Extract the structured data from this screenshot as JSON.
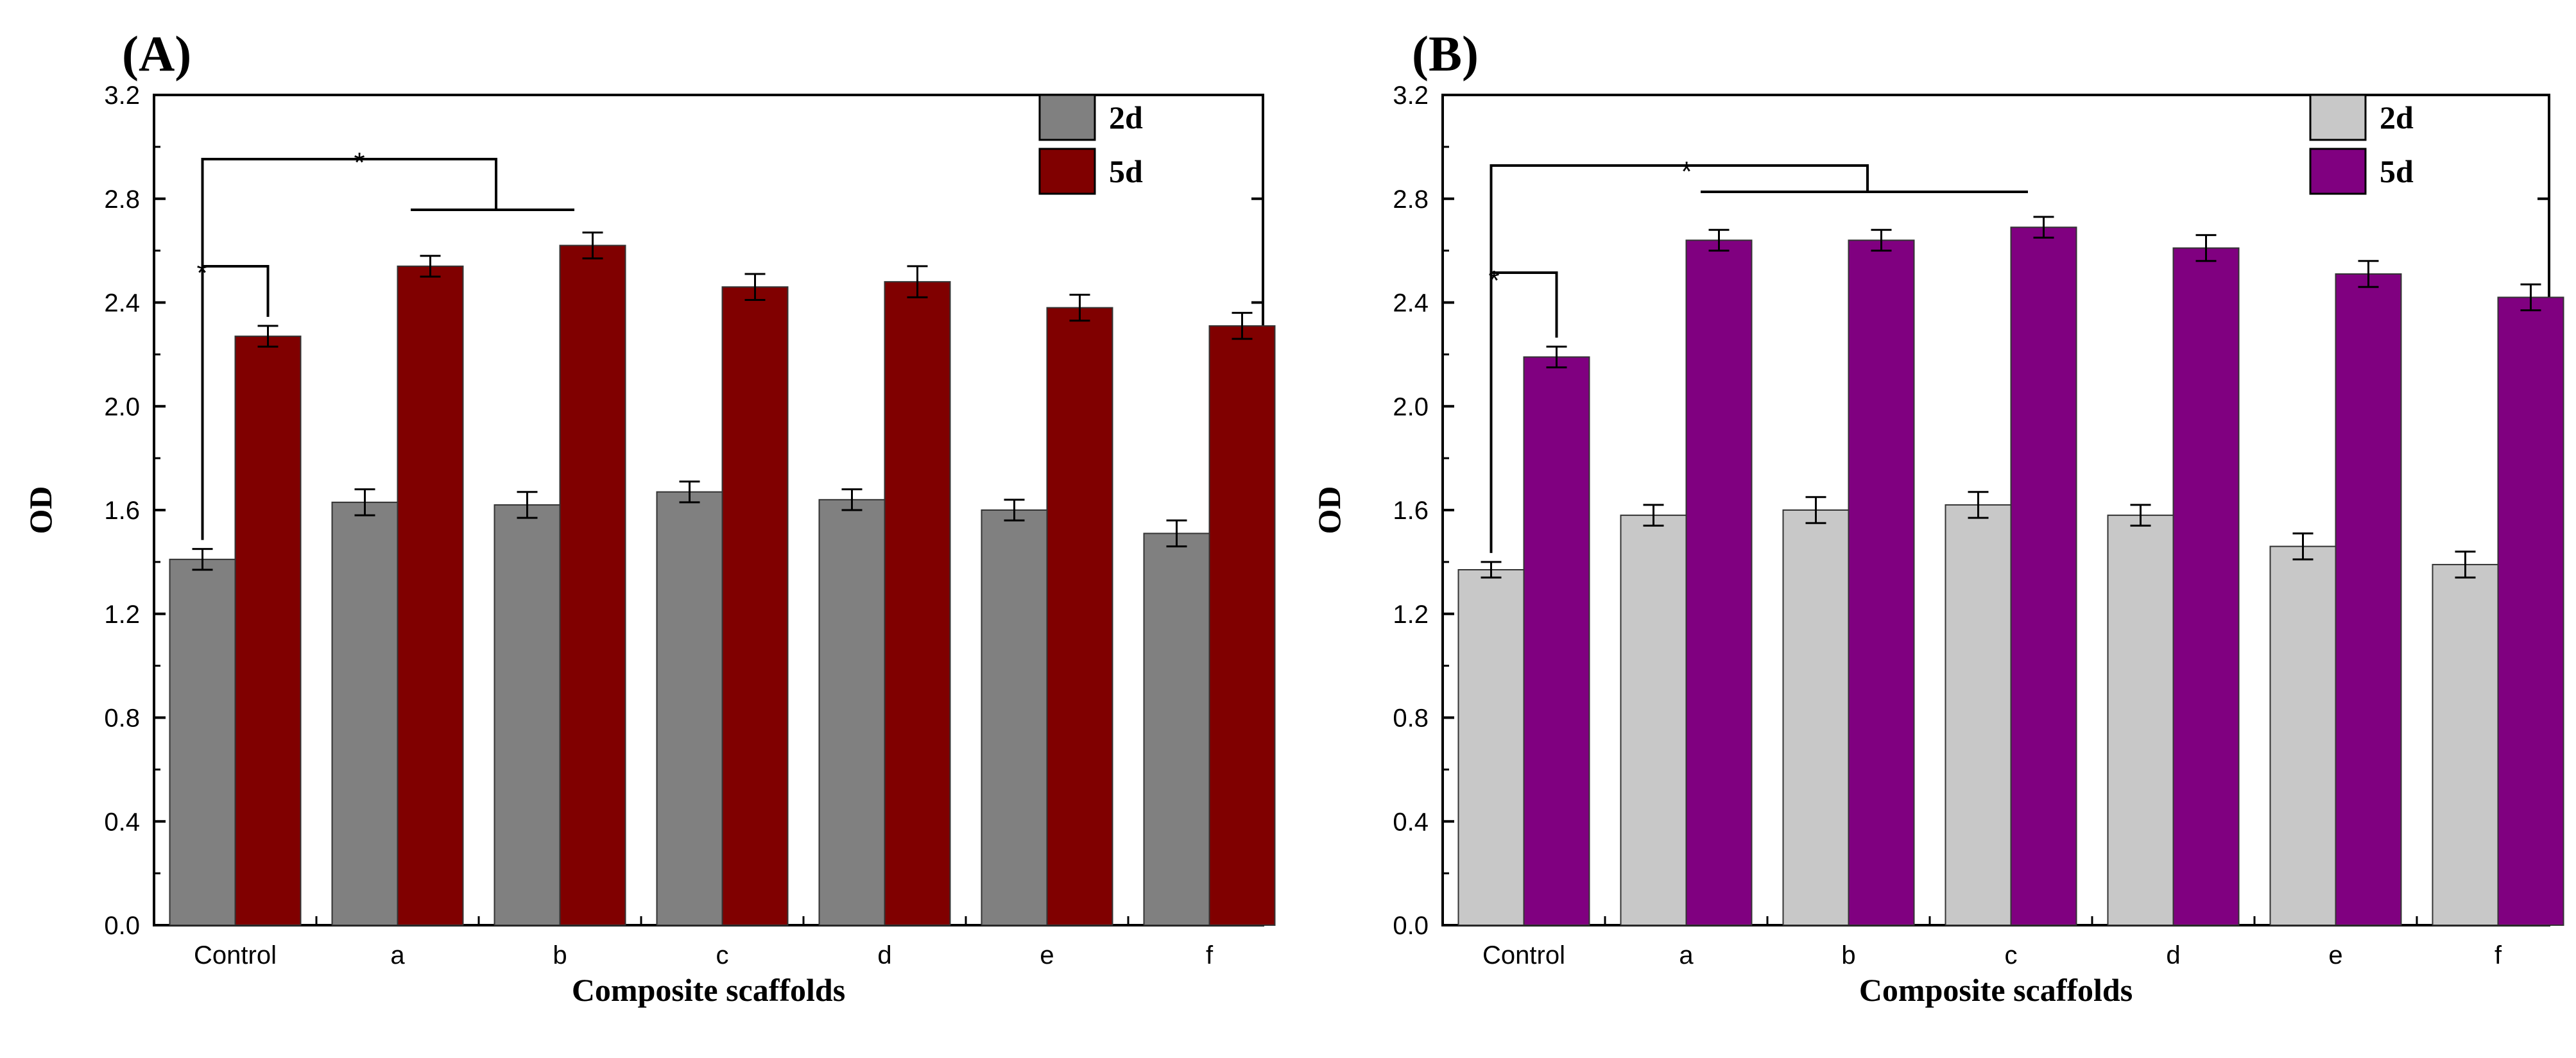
{
  "chart_data": [
    {
      "type": "bar",
      "panel_label": "(A)",
      "categories": [
        "Control",
        "a",
        "b",
        "c",
        "d",
        "e",
        "f"
      ],
      "series": [
        {
          "name": "2d",
          "color": "#808080",
          "values": [
            1.41,
            1.63,
            1.62,
            1.67,
            1.64,
            1.6,
            1.51
          ],
          "errors": [
            0.04,
            0.05,
            0.05,
            0.04,
            0.04,
            0.04,
            0.05
          ]
        },
        {
          "name": "5d",
          "color": "#800000",
          "values": [
            2.27,
            2.54,
            2.62,
            2.46,
            2.48,
            2.38,
            2.31
          ],
          "errors": [
            0.04,
            0.04,
            0.05,
            0.05,
            0.06,
            0.05,
            0.05
          ]
        }
      ],
      "xlabel": "Composite scaffolds",
      "ylabel": "OD",
      "ylim": [
        0,
        3.2
      ],
      "yticks": [
        "0.0",
        "0.4",
        "0.8",
        "1.2",
        "1.6",
        "2.0",
        "2.4",
        "2.8",
        "3.2"
      ],
      "legend_position": "top-right",
      "annotations": [
        "*",
        "*"
      ]
    },
    {
      "type": "bar",
      "panel_label": "(B)",
      "categories": [
        "Control",
        "a",
        "b",
        "c",
        "d",
        "e",
        "f"
      ],
      "series": [
        {
          "name": "2d",
          "color": "#c8c8c8",
          "values": [
            1.37,
            1.58,
            1.6,
            1.62,
            1.58,
            1.46,
            1.39
          ],
          "errors": [
            0.03,
            0.04,
            0.05,
            0.05,
            0.04,
            0.05,
            0.05
          ]
        },
        {
          "name": "5d",
          "color": "#800080",
          "values": [
            2.19,
            2.64,
            2.64,
            2.69,
            2.61,
            2.51,
            2.42
          ],
          "errors": [
            0.04,
            0.04,
            0.04,
            0.04,
            0.05,
            0.05,
            0.05
          ]
        }
      ],
      "xlabel": "Composite scaffolds",
      "ylabel": "OD",
      "ylim": [
        0,
        3.2
      ],
      "yticks": [
        "0.0",
        "0.4",
        "0.8",
        "1.2",
        "1.6",
        "2.0",
        "2.4",
        "2.8",
        "3.2"
      ],
      "legend_position": "top-right",
      "annotations": [
        "*",
        "*"
      ]
    }
  ]
}
